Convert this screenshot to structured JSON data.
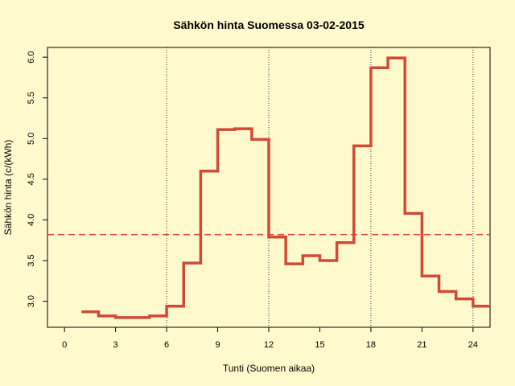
{
  "chart_data": {
    "type": "line",
    "step": "post",
    "title": "Sähkön hinta Suomessa 03-02-2015",
    "xlabel": "Tunti (Suomen aikaa)",
    "ylabel": "Sähkön hinta (c/(kWh)",
    "xlim": [
      -1,
      25
    ],
    "ylim": [
      2.68,
      6.12
    ],
    "x_ticks": [
      0,
      3,
      6,
      9,
      12,
      15,
      18,
      21,
      24
    ],
    "y_ticks": [
      3.0,
      3.5,
      4.0,
      4.5,
      5.0,
      5.5,
      6.0
    ],
    "y_tick_labels": [
      "3.0",
      "3.5",
      "4.0",
      "4.5",
      "5.0",
      "5.5",
      "6.0"
    ],
    "vlines": [
      6,
      12,
      18,
      24
    ],
    "mean_line": 3.82,
    "series": [
      {
        "x": [
          1,
          2,
          3,
          4,
          5,
          6,
          7,
          8,
          9,
          10,
          11,
          12,
          13,
          14,
          15,
          16,
          17,
          18,
          19,
          20,
          21,
          22,
          23,
          24,
          25
        ],
        "values": [
          2.87,
          2.82,
          2.8,
          2.8,
          2.82,
          2.94,
          3.47,
          4.6,
          5.11,
          5.12,
          4.99,
          3.79,
          3.46,
          3.56,
          3.5,
          3.72,
          4.91,
          5.87,
          5.99,
          4.08,
          3.31,
          3.12,
          3.03,
          2.94,
          2.94
        ]
      }
    ],
    "colors": {
      "background": "#fffacd",
      "line": "#d24a35",
      "mean_line": "#e0473a",
      "axis": "#000000",
      "vline": "#333333"
    }
  }
}
